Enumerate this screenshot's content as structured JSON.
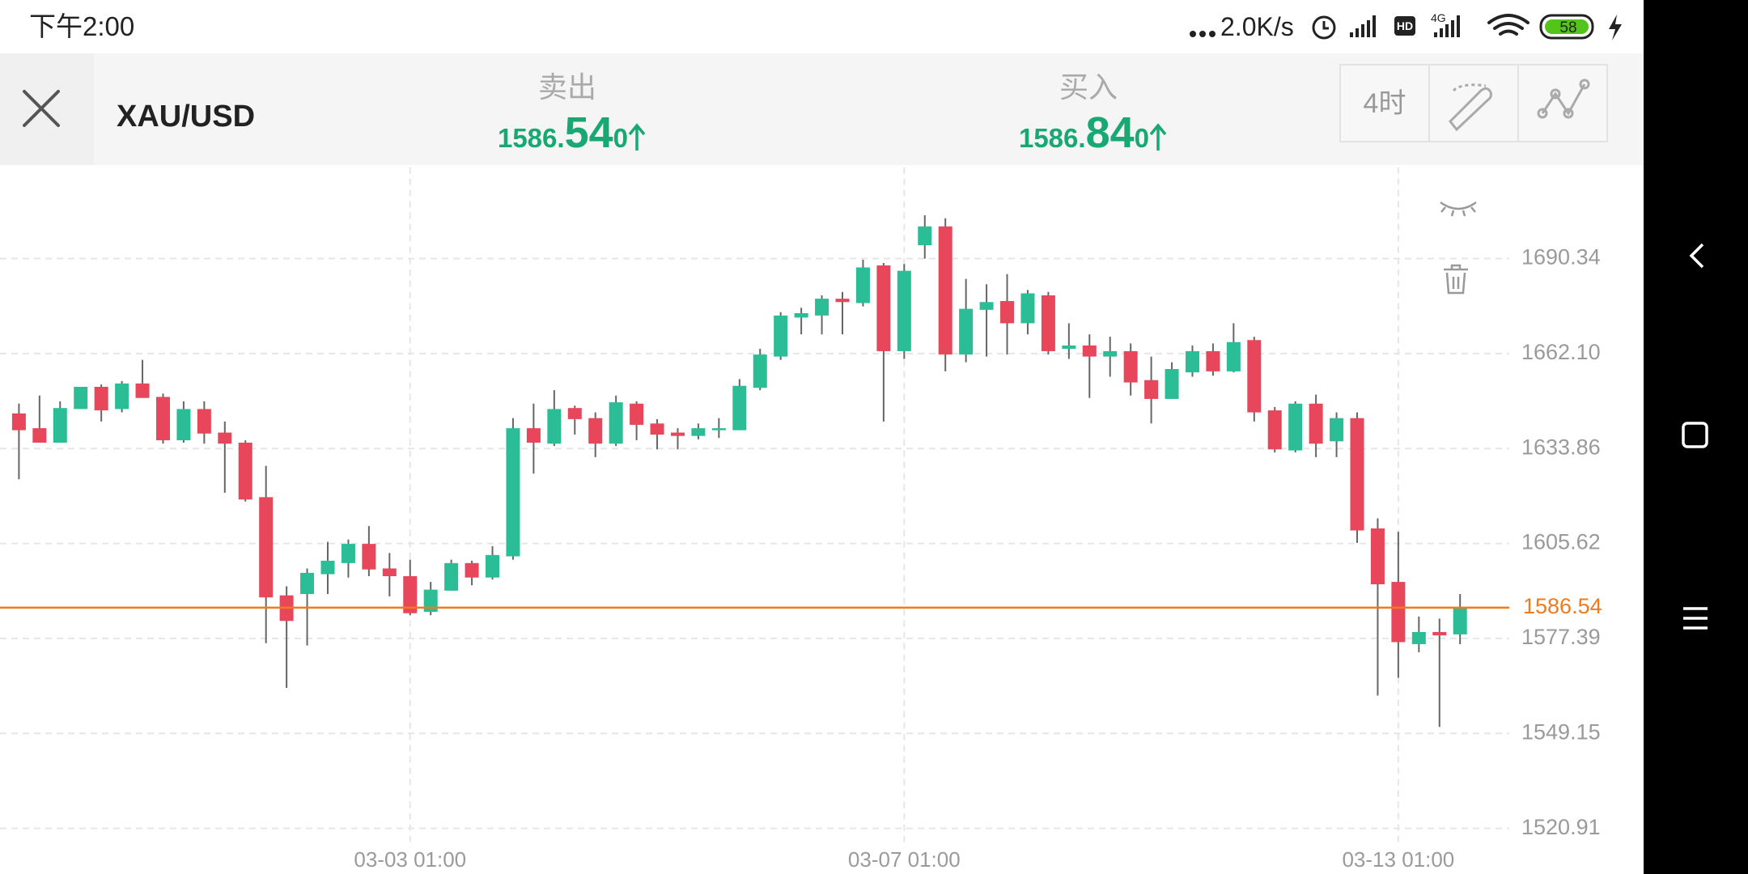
{
  "status_bar": {
    "time": "下午2:00",
    "speed": "2.0K/s",
    "hd": "HD",
    "network": "4G",
    "battery": "58"
  },
  "header": {
    "symbol": "XAU/USD",
    "sell": {
      "label": "卖出",
      "price_parts": [
        "1586.",
        "54",
        "0"
      ]
    },
    "buy": {
      "label": "买入",
      "price_parts": [
        "1586.",
        "84",
        "0"
      ]
    },
    "timeframe": "4时"
  },
  "chart_data": {
    "type": "candlestick",
    "categories": [
      null,
      null,
      null,
      null,
      null,
      null,
      null,
      null,
      null,
      null,
      null,
      null,
      null,
      null,
      null,
      null,
      null,
      null,
      null,
      "03-03 01:00",
      null,
      null,
      null,
      null,
      null,
      null,
      null,
      null,
      null,
      null,
      null,
      null,
      null,
      null,
      null,
      null,
      null,
      null,
      null,
      null,
      null,
      null,
      null,
      "03-07 01:00",
      null,
      null,
      null,
      null,
      null,
      null,
      null,
      null,
      null,
      null,
      null,
      null,
      null,
      null,
      null,
      null,
      null,
      null,
      null,
      null,
      null,
      null,
      null,
      "03-13 01:00",
      null,
      null,
      null
    ],
    "open": [
      1644.3,
      1639.9,
      1635.6,
      1645.6,
      1652.2,
      1645.6,
      1653.2,
      1649.2,
      1636.3,
      1645.6,
      1638.6,
      1635.6,
      1619.4,
      1590.2,
      1590.6,
      1596.5,
      1599.8,
      1605.5,
      1598.2,
      1595.9,
      1585.3,
      1591.6,
      1599.8,
      1595.5,
      1601.8,
      1639.9,
      1635.3,
      1645.9,
      1642.9,
      1635.3,
      1647.2,
      1641.3,
      1638.6,
      1637.6,
      1639.3,
      1639.3,
      1651.9,
      1661.2,
      1672.8,
      1673.4,
      1678.4,
      1677.1,
      1688.3,
      1662.8,
      1694.3,
      1699.9,
      1661.8,
      1675.1,
      1677.7,
      1671.1,
      1679.4,
      1663.5,
      1664.5,
      1661.2,
      1662.8,
      1654.2,
      1648.6,
      1656.5,
      1662.8,
      1656.8,
      1666.1,
      1645.2,
      1633.3,
      1647.2,
      1636.0,
      1642.9,
      1610.1,
      1594.2,
      1575.7,
      1579.3,
      1578.6
    ],
    "high": [
      1647.2,
      1649.6,
      1647.9,
      1652.2,
      1652.9,
      1653.9,
      1660.2,
      1650.2,
      1647.9,
      1647.9,
      1641.9,
      1636.3,
      1628.7,
      1592.9,
      1598.2,
      1606.1,
      1606.8,
      1610.8,
      1602.8,
      1600.8,
      1594.2,
      1600.8,
      1600.5,
      1604.8,
      1642.9,
      1647.2,
      1651.2,
      1646.6,
      1644.6,
      1649.6,
      1647.9,
      1642.6,
      1639.9,
      1641.3,
      1642.9,
      1654.5,
      1663.5,
      1674.4,
      1675.7,
      1679.4,
      1680.4,
      1690.0,
      1689.0,
      1688.7,
      1703.2,
      1702.3,
      1684.3,
      1682.7,
      1685.7,
      1681.0,
      1680.4,
      1671.1,
      1667.8,
      1667.1,
      1665.1,
      1661.2,
      1659.5,
      1664.5,
      1665.1,
      1671.1,
      1667.1,
      1646.2,
      1647.9,
      1649.9,
      1644.6,
      1644.6,
      1613.1,
      1609.1,
      1583.9,
      1583.3,
      1590.6
    ],
    "low": [
      1624.7,
      1635.6,
      1635.6,
      1645.6,
      1641.9,
      1644.6,
      1648.9,
      1635.3,
      1635.6,
      1635.3,
      1620.7,
      1618.1,
      1576.0,
      1562.7,
      1575.3,
      1590.6,
      1595.5,
      1595.9,
      1589.9,
      1584.3,
      1584.3,
      1591.6,
      1593.2,
      1594.9,
      1600.8,
      1626.4,
      1634.6,
      1638.0,
      1631.3,
      1634.6,
      1636.3,
      1633.6,
      1633.6,
      1636.6,
      1637.0,
      1639.3,
      1651.2,
      1660.2,
      1667.8,
      1667.8,
      1667.8,
      1676.1,
      1641.9,
      1660.5,
      1690.3,
      1656.8,
      1659.5,
      1661.2,
      1661.8,
      1667.8,
      1661.8,
      1660.5,
      1648.9,
      1655.2,
      1649.6,
      1641.3,
      1648.6,
      1655.2,
      1655.5,
      1656.5,
      1641.9,
      1632.7,
      1632.7,
      1631.3,
      1631.3,
      1605.8,
      1560.4,
      1565.7,
      1573.3,
      1551.1,
      1575.7
    ],
    "close": [
      1639.3,
      1635.6,
      1645.9,
      1652.2,
      1645.2,
      1653.2,
      1648.9,
      1636.3,
      1645.6,
      1638.3,
      1635.3,
      1618.7,
      1589.6,
      1582.6,
      1596.9,
      1600.5,
      1605.5,
      1597.9,
      1595.9,
      1584.9,
      1591.9,
      1599.8,
      1595.5,
      1602.2,
      1639.9,
      1635.6,
      1645.6,
      1642.6,
      1635.3,
      1647.6,
      1640.9,
      1638.0,
      1637.6,
      1639.9,
      1639.9,
      1652.5,
      1661.8,
      1673.4,
      1674.1,
      1678.4,
      1677.4,
      1687.7,
      1662.8,
      1686.7,
      1699.9,
      1661.8,
      1675.4,
      1677.4,
      1671.1,
      1680.0,
      1662.8,
      1664.5,
      1661.2,
      1662.8,
      1653.5,
      1648.6,
      1657.5,
      1662.8,
      1656.8,
      1665.5,
      1644.6,
      1633.6,
      1647.2,
      1635.3,
      1642.9,
      1609.5,
      1593.5,
      1576.3,
      1579.3,
      1578.3,
      1586.5
    ],
    "up_color": "#2bbd96",
    "down_color": "#e8475b",
    "ylim": [
      1515.3,
      1717.5
    ],
    "yticks": [
      1520.91,
      1549.15,
      1577.39,
      1605.62,
      1633.86,
      {
        "value": 1662.1,
        "label": "1662.10"
      },
      1690.34
    ],
    "grid": true,
    "current_price": 1586.54,
    "current_price_color": "#f07a1e"
  }
}
